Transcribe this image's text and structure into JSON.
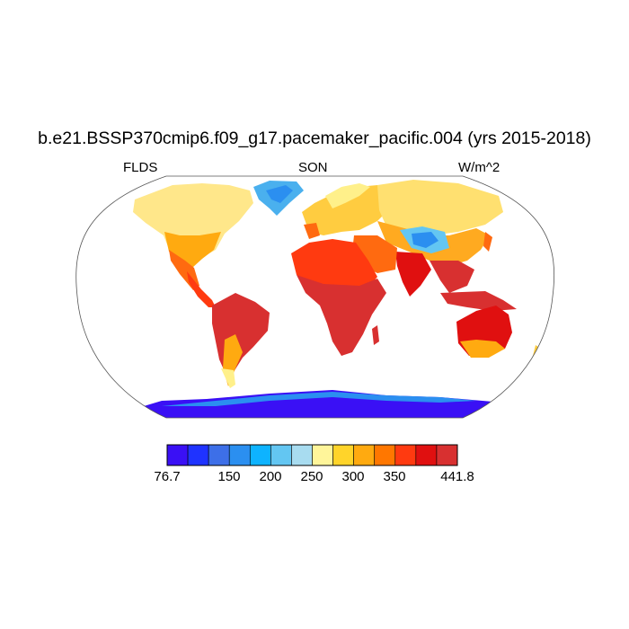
{
  "title": "b.e21.BSSP370cmip6.f09_g17.pacemaker_pacific.004 (yrs 2015-2018)",
  "variable": "FLDS",
  "season": "SON",
  "units": "W/m^2",
  "colorbar": {
    "colors": [
      "#3a10f5",
      "#1f33ff",
      "#3d6fe8",
      "#2b8ff0",
      "#0eb3ff",
      "#63c6f2",
      "#a8dcf0",
      "#fff59a",
      "#ffd42a",
      "#ffaa10",
      "#ff7700",
      "#ff3a10",
      "#e01010",
      "#d83030"
    ],
    "labels": [
      "76.7",
      "150",
      "200",
      "250",
      "300",
      "350",
      "441.8"
    ]
  }
}
